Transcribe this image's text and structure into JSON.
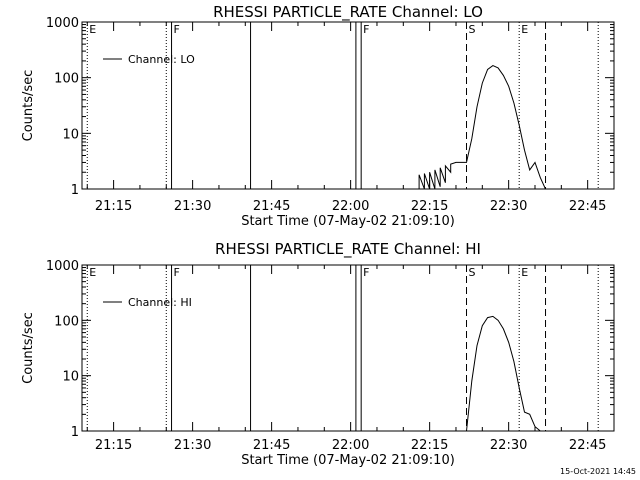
{
  "timestamp": "15-Oct-2021 14:45",
  "chart_data": [
    {
      "type": "line",
      "title": "RHESSI PARTICLE_RATE Channel: LO",
      "xlabel": "Start Time (07-May-02 21:09:10)",
      "ylabel": "Counts/sec",
      "y_scale": "log",
      "x_range_minutes": [
        "21:09",
        "22:50"
      ],
      "ylim": [
        1,
        1000
      ],
      "x_ticks": [
        "21:15",
        "21:30",
        "21:45",
        "22:00",
        "22:15",
        "22:30",
        "22:45"
      ],
      "y_ticks": [
        "1",
        "10",
        "100",
        "1000"
      ],
      "legend": {
        "label": "Channel: LO",
        "placement": "top-left"
      },
      "markers": [
        {
          "time": "21:10",
          "style": "dotted",
          "label": "E"
        },
        {
          "time": "21:25",
          "style": "dotted",
          "label": ""
        },
        {
          "time": "21:26",
          "style": "solid",
          "label": "F"
        },
        {
          "time": "21:41",
          "style": "solid",
          "label": ""
        },
        {
          "time": "22:01",
          "style": "solid",
          "label": ""
        },
        {
          "time": "22:02",
          "style": "solid",
          "label": "F"
        },
        {
          "time": "22:22",
          "style": "dashed",
          "label": "S"
        },
        {
          "time": "22:32",
          "style": "dotted",
          "label": "E"
        },
        {
          "time": "22:37",
          "style": "dashed",
          "label": ""
        },
        {
          "time": "22:47",
          "style": "dotted",
          "label": ""
        }
      ],
      "series": [
        {
          "name": "Channel: LO",
          "x": [
            "22:13",
            "22:13",
            "22:14",
            "22:14",
            "22:15",
            "22:15",
            "22:16",
            "22:16",
            "22:17",
            "22:17",
            "22:18",
            "22:18",
            "22:19",
            "22:19",
            "22:20",
            "22:22",
            "22:23",
            "22:24",
            "22:25",
            "22:26",
            "22:27",
            "22:28",
            "22:29",
            "22:30",
            "22:31",
            "22:32",
            "22:33",
            "22:34",
            "22:35",
            "22:36",
            "22:37"
          ],
          "y": [
            1,
            1.8,
            1,
            1.9,
            1,
            2,
            1,
            2.2,
            1.1,
            2.4,
            1.3,
            2.6,
            2,
            2.8,
            3,
            3,
            8,
            30,
            80,
            140,
            165,
            150,
            110,
            70,
            35,
            14,
            5,
            2.2,
            3,
            1.6,
            1
          ]
        }
      ]
    },
    {
      "type": "line",
      "title": "RHESSI PARTICLE_RATE Channel: HI",
      "xlabel": "Start Time (07-May-02 21:09:10)",
      "ylabel": "Counts/sec",
      "y_scale": "log",
      "x_range_minutes": [
        "21:09",
        "22:50"
      ],
      "ylim": [
        1,
        1000
      ],
      "x_ticks": [
        "21:15",
        "21:30",
        "21:45",
        "22:00",
        "22:15",
        "22:30",
        "22:45"
      ],
      "y_ticks": [
        "1",
        "10",
        "100",
        "1000"
      ],
      "legend": {
        "label": "Channel: HI",
        "placement": "top-left"
      },
      "markers": [
        {
          "time": "21:10",
          "style": "dotted",
          "label": "E"
        },
        {
          "time": "21:25",
          "style": "dotted",
          "label": ""
        },
        {
          "time": "21:26",
          "style": "solid",
          "label": "F"
        },
        {
          "time": "21:41",
          "style": "solid",
          "label": ""
        },
        {
          "time": "22:01",
          "style": "solid",
          "label": ""
        },
        {
          "time": "22:02",
          "style": "solid",
          "label": "F"
        },
        {
          "time": "22:22",
          "style": "dashed",
          "label": "S"
        },
        {
          "time": "22:32",
          "style": "dotted",
          "label": "E"
        },
        {
          "time": "22:37",
          "style": "dashed",
          "label": ""
        },
        {
          "time": "22:47",
          "style": "dotted",
          "label": ""
        }
      ],
      "series": [
        {
          "name": "Channel: HI",
          "x": [
            "22:22",
            "22:23",
            "22:24",
            "22:25",
            "22:26",
            "22:27",
            "22:28",
            "22:29",
            "22:30",
            "22:31",
            "22:32",
            "22:33",
            "22:34",
            "22:35",
            "22:36"
          ],
          "y": [
            1,
            8,
            35,
            80,
            112,
            118,
            100,
            70,
            40,
            18,
            6,
            2.2,
            2,
            1.2,
            1
          ]
        }
      ]
    }
  ]
}
